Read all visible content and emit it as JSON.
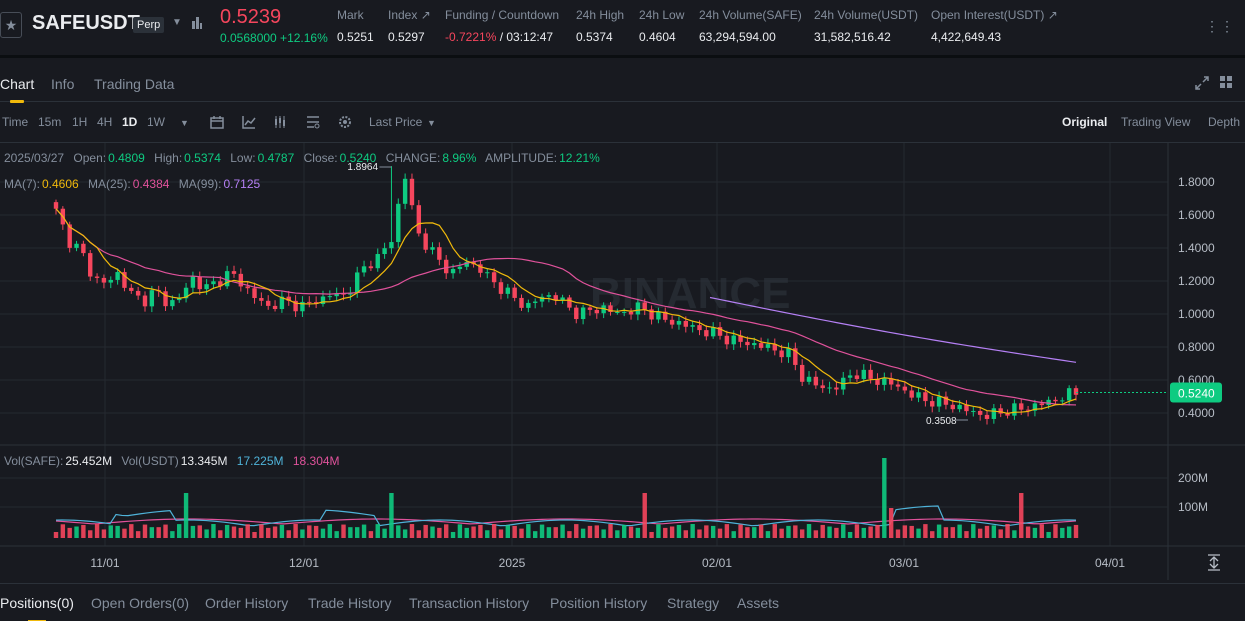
{
  "header": {
    "symbol": "SAFEUSDT",
    "contract_type": "Perp",
    "last_price": "0.5239",
    "change": "0.0568000 +12.16%",
    "stats": [
      {
        "label": "Mark",
        "value": "0.5251"
      },
      {
        "label": "Index ↗",
        "value": "0.5297"
      },
      {
        "label": "Funding / Countdown",
        "value_neg": "-0.7221%",
        "value": " / 03:12:47"
      },
      {
        "label": "24h High",
        "value": "0.5374"
      },
      {
        "label": "24h Low",
        "value": "0.4604"
      },
      {
        "label": "24h Volume(SAFE)",
        "value": "63,294,594.00"
      },
      {
        "label": "24h Volume(USDT)",
        "value": "31,582,516.42"
      },
      {
        "label": "Open Interest(USDT) ↗",
        "value": "4,422,649.43"
      }
    ]
  },
  "tabs": [
    "Chart",
    "Info",
    "Trading Data"
  ],
  "toolbar": {
    "intervals": [
      "Time",
      "15m",
      "1H",
      "4H",
      "1D",
      "1W"
    ],
    "active_interval": "1D",
    "price_type": "Last Price",
    "views": [
      "Original",
      "Trading View",
      "Depth"
    ],
    "active_view": "Original"
  },
  "legend": {
    "date": "2025/03/27",
    "open_label": "Open:",
    "open": "0.4809",
    "high_label": "High:",
    "high": "0.5374",
    "low_label": "Low:",
    "low": "0.4787",
    "close_label": "Close:",
    "close": "0.5240",
    "change_label": "CHANGE:",
    "change": "8.96%",
    "amp_label": "AMPLITUDE:",
    "amplitude": "12.21%",
    "ma7_label": "MA(7):",
    "ma7": "0.4606",
    "ma25_label": "MA(25):",
    "ma25": "0.4384",
    "ma99_label": "MA(99):",
    "ma99": "0.7125",
    "vol_label": "Vol(SAFE):",
    "vol_safe": "25.452M",
    "volu_label": "Vol(USDT)",
    "vol_usdt": "13.345M",
    "vol_ma1": "17.225M",
    "vol_ma2": "18.304M"
  },
  "price_axis": [
    "1.8000",
    "1.6000",
    "1.4000",
    "1.2000",
    "1.0000",
    "0.8000",
    "0.6000",
    "0.4000"
  ],
  "current_price_tag": "0.5240",
  "high_marker": "1.8964",
  "low_marker": "0.3508",
  "volume_axis": [
    "200M",
    "100M"
  ],
  "time_axis": [
    "11/01",
    "12/01",
    "2025",
    "02/01",
    "03/01",
    "04/01"
  ],
  "watermark": "BINANCE",
  "bottom_tabs": [
    "Positions(0)",
    "Open Orders(0)",
    "Order History",
    "Trade History",
    "Transaction History",
    "Position History",
    "Strategy",
    "Assets"
  ],
  "colors": {
    "up": "#0ecb81",
    "down": "#f6465d",
    "accent": "#f0b90b",
    "ma7": "#f0b90b",
    "ma25": "#e0529b",
    "ma99": "#b580f5",
    "vol_ma1": "#4fb3d9",
    "vol_ma2": "#e0529b"
  },
  "chart_data": {
    "type": "candlestick",
    "series_closes_approx": [
      1.62,
      1.45,
      1.38,
      1.22,
      1.18,
      1.25,
      1.12,
      1.08,
      1.14,
      1.06,
      1.1,
      1.22,
      1.15,
      1.2,
      1.25,
      1.18,
      1.1,
      1.04,
      1.08,
      1.06,
      1.05,
      1.08,
      1.12,
      1.1,
      1.2,
      1.3,
      1.35,
      1.45,
      1.86,
      1.5,
      1.4,
      1.3,
      1.25,
      1.32,
      1.28,
      1.2,
      1.15,
      1.08,
      1.05,
      1.1,
      1.12,
      1.05,
      1.0,
      1.02,
      1.04,
      1.0,
      1.02,
      1.04,
      1.0,
      0.96,
      0.95,
      0.92,
      0.9,
      0.88,
      0.85,
      0.83,
      0.82,
      0.8,
      0.78,
      0.75,
      0.62,
      0.57,
      0.55,
      0.56,
      0.65,
      0.62,
      0.6,
      0.58,
      0.55,
      0.5,
      0.48,
      0.46,
      0.45,
      0.42,
      0.4,
      0.38,
      0.41,
      0.42,
      0.43,
      0.45,
      0.47,
      0.5,
      0.524
    ],
    "ylim": [
      0.3,
      1.95
    ]
  }
}
